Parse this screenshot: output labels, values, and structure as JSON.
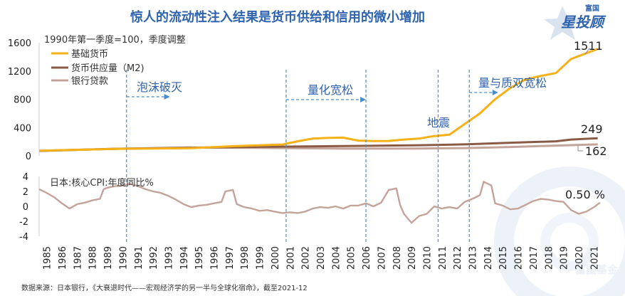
{
  "title": "惊人的流动性注入结果是货币供给和信用的微小增加",
  "source": "数据来源：日本银行，《大衰退时代——宏观经济学的另一半与全球化宿命》，截至2021-12",
  "brand": {
    "small": "富国",
    "big": "星投顾"
  },
  "watermark": "富国基金",
  "colors": {
    "title": "#2f63ae",
    "base": "#f5b117",
    "m2": "#8b5a44",
    "loans": "#c4a39a",
    "cpi": "#c4a39a",
    "phase": "#4a8cc8"
  },
  "chart_data": [
    {
      "type": "line",
      "title": "1990年第一季度=100，季度调整",
      "ylim": [
        0,
        1600
      ],
      "yticks": [
        "0",
        "400",
        "800",
        "1200",
        "1600"
      ],
      "series": [
        {
          "name": "基础货币",
          "color_key": "base",
          "x": [
            1985,
            1990,
            1995,
            1998,
            2001,
            2002,
            2003,
            2004,
            2005,
            2006,
            2007,
            2008,
            2009,
            2010,
            2011,
            2012,
            2013,
            2014,
            2015,
            2016,
            2017,
            2018,
            2019,
            2020,
            2021.75
          ],
          "y": [
            72,
            98,
            108,
            138,
            160,
            205,
            245,
            255,
            258,
            215,
            208,
            210,
            230,
            245,
            280,
            300,
            450,
            600,
            800,
            960,
            1080,
            1130,
            1170,
            1370,
            1511
          ]
        },
        {
          "name": "货币供应量（M2)",
          "color_key": "m2",
          "x": [
            1985,
            1990,
            1995,
            2000,
            2005,
            2010,
            2013,
            2016,
            2019,
            2020,
            2021.75
          ],
          "y": [
            70,
            100,
            115,
            128,
            138,
            150,
            162,
            185,
            205,
            230,
            249
          ]
        },
        {
          "name": "银行贷款",
          "color_key": "loans",
          "x": [
            1985,
            1990,
            1995,
            2000,
            2005,
            2010,
            2013,
            2016,
            2019,
            2021.75
          ],
          "y": [
            68,
            100,
            118,
            112,
            102,
            103,
            110,
            125,
            145,
            162
          ]
        }
      ],
      "phases": [
        "泡沫破灭",
        "量化宽松",
        "量与质双宽松"
      ],
      "annotations": [
        "地震"
      ],
      "end_labels": [
        "1511",
        "249",
        "162"
      ]
    },
    {
      "type": "line",
      "title": "日本:核心CPI:年度同比%",
      "ylim": [
        -4,
        4
      ],
      "yticks": [
        "-4",
        "-2",
        "0",
        "2",
        "4"
      ],
      "series": [
        {
          "name": "日本:核心CPI:年度同比%",
          "color_key": "cpi",
          "x": [
            1985,
            1985.5,
            1986,
            1986.5,
            1987,
            1987.5,
            1988,
            1988.5,
            1989,
            1989.25,
            1989.5,
            1990,
            1990.5,
            1991,
            1991.5,
            1992,
            1992.5,
            1993,
            1993.5,
            1994,
            1994.5,
            1995,
            1995.5,
            1996,
            1996.5,
            1997,
            1997.25,
            1997.75,
            1998,
            1998.5,
            1999,
            1999.5,
            2000,
            2000.5,
            2001,
            2001.5,
            2002,
            2002.5,
            2003,
            2003.5,
            2004,
            2004.5,
            2005,
            2005.5,
            2006,
            2006.5,
            2007,
            2007.5,
            2008,
            2008.5,
            2008.75,
            2009,
            2009.5,
            2010,
            2010.5,
            2011,
            2011.5,
            2012,
            2012.5,
            2013,
            2013.5,
            2014,
            2014.25,
            2014.75,
            2015,
            2015.5,
            2016,
            2016.5,
            2017,
            2017.5,
            2018,
            2018.5,
            2019,
            2019.5,
            2020,
            2020.5,
            2021,
            2021.5,
            2021.9
          ],
          "y": [
            2.3,
            1.8,
            1.2,
            0.4,
            -0.3,
            0.3,
            0.5,
            0.8,
            1.0,
            2.3,
            2.5,
            2.7,
            2.8,
            3.0,
            2.7,
            2.3,
            2.0,
            1.8,
            1.4,
            0.9,
            0.3,
            -0.1,
            0.1,
            0.2,
            0.4,
            0.6,
            2.0,
            2.2,
            0.3,
            -0.1,
            -0.3,
            -0.6,
            -0.5,
            -0.7,
            -0.9,
            -0.8,
            -0.9,
            -0.7,
            -0.3,
            -0.1,
            -0.2,
            0.0,
            -0.3,
            0.1,
            0.1,
            0.4,
            0.0,
            0.5,
            2.2,
            2.4,
            0.2,
            -1.0,
            -2.2,
            -1.3,
            -1.0,
            0.0,
            -0.3,
            -0.1,
            -0.3,
            0.6,
            1.0,
            1.5,
            3.3,
            2.8,
            0.4,
            0.1,
            -0.4,
            -0.3,
            0.2,
            0.7,
            1.0,
            0.9,
            0.7,
            0.6,
            -0.5,
            -1.0,
            -0.7,
            -0.1,
            0.5
          ]
        }
      ],
      "end_labels": [
        "0.50 %"
      ],
      "xticks": [
        "1985",
        "1986",
        "1987",
        "1988",
        "1989",
        "1990",
        "1991",
        "1992",
        "1993",
        "1994",
        "1995",
        "1996",
        "1997",
        "1998",
        "1999",
        "2000",
        "2001",
        "2002",
        "2003",
        "2004",
        "2005",
        "2006",
        "2007",
        "2008",
        "2009",
        "2010",
        "2011",
        "2012",
        "2013",
        "2014",
        "2015",
        "2016",
        "2017",
        "2018",
        "2019",
        "2020",
        "2021"
      ]
    }
  ]
}
